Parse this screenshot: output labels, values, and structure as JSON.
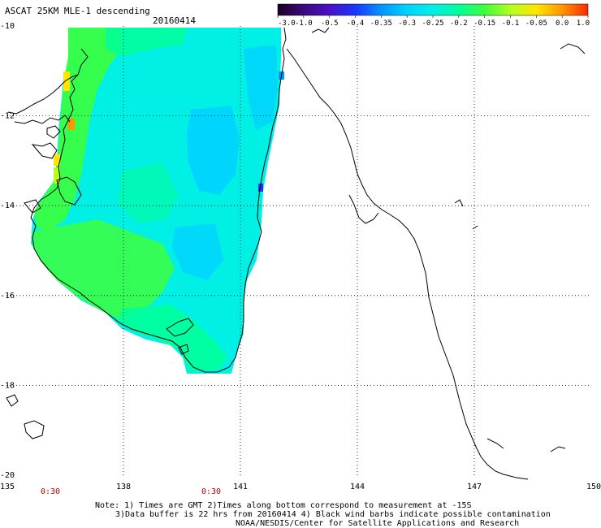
{
  "title": "ASCAT 25KM MLE-1 descending",
  "date": "20160414",
  "colorbar": {
    "labels": [
      "-3.0",
      "-1.0",
      "-0.5",
      "-0.4",
      "-0.35",
      "-0.3",
      "-0.25",
      "-0.2",
      "-0.15",
      "-0.1",
      "-0.05",
      "0.0",
      "1.0"
    ],
    "colors": [
      "#1a0026",
      "#3a0a7a",
      "#4a10c8",
      "#1a36ff",
      "#0096ff",
      "#00d2ff",
      "#00f0e6",
      "#00ff9a",
      "#3cff3c",
      "#b4ff1e",
      "#ffe600",
      "#ff9600",
      "#ff2800"
    ]
  },
  "axes": {
    "lon_labels": [
      "135",
      "138",
      "141",
      "144",
      "147",
      "150"
    ],
    "lat_labels": [
      "-10",
      "-12",
      "-14",
      "-16",
      "-18",
      "-20"
    ],
    "lon_range": [
      135,
      150
    ],
    "lat_range": [
      -20,
      -10
    ]
  },
  "time_labels": [
    "0:30",
    "0:30"
  ],
  "notes": {
    "line1": "Note: 1) Times are GMT 2)Times along bottom correspond to measurement at -15S",
    "line2": "3)Data buffer is 22 hrs from 20160414 4) Black wind barbs indicate possible contamination",
    "line3": "NOAA/NESDIS/Center for Satellite Applications and Research"
  }
}
